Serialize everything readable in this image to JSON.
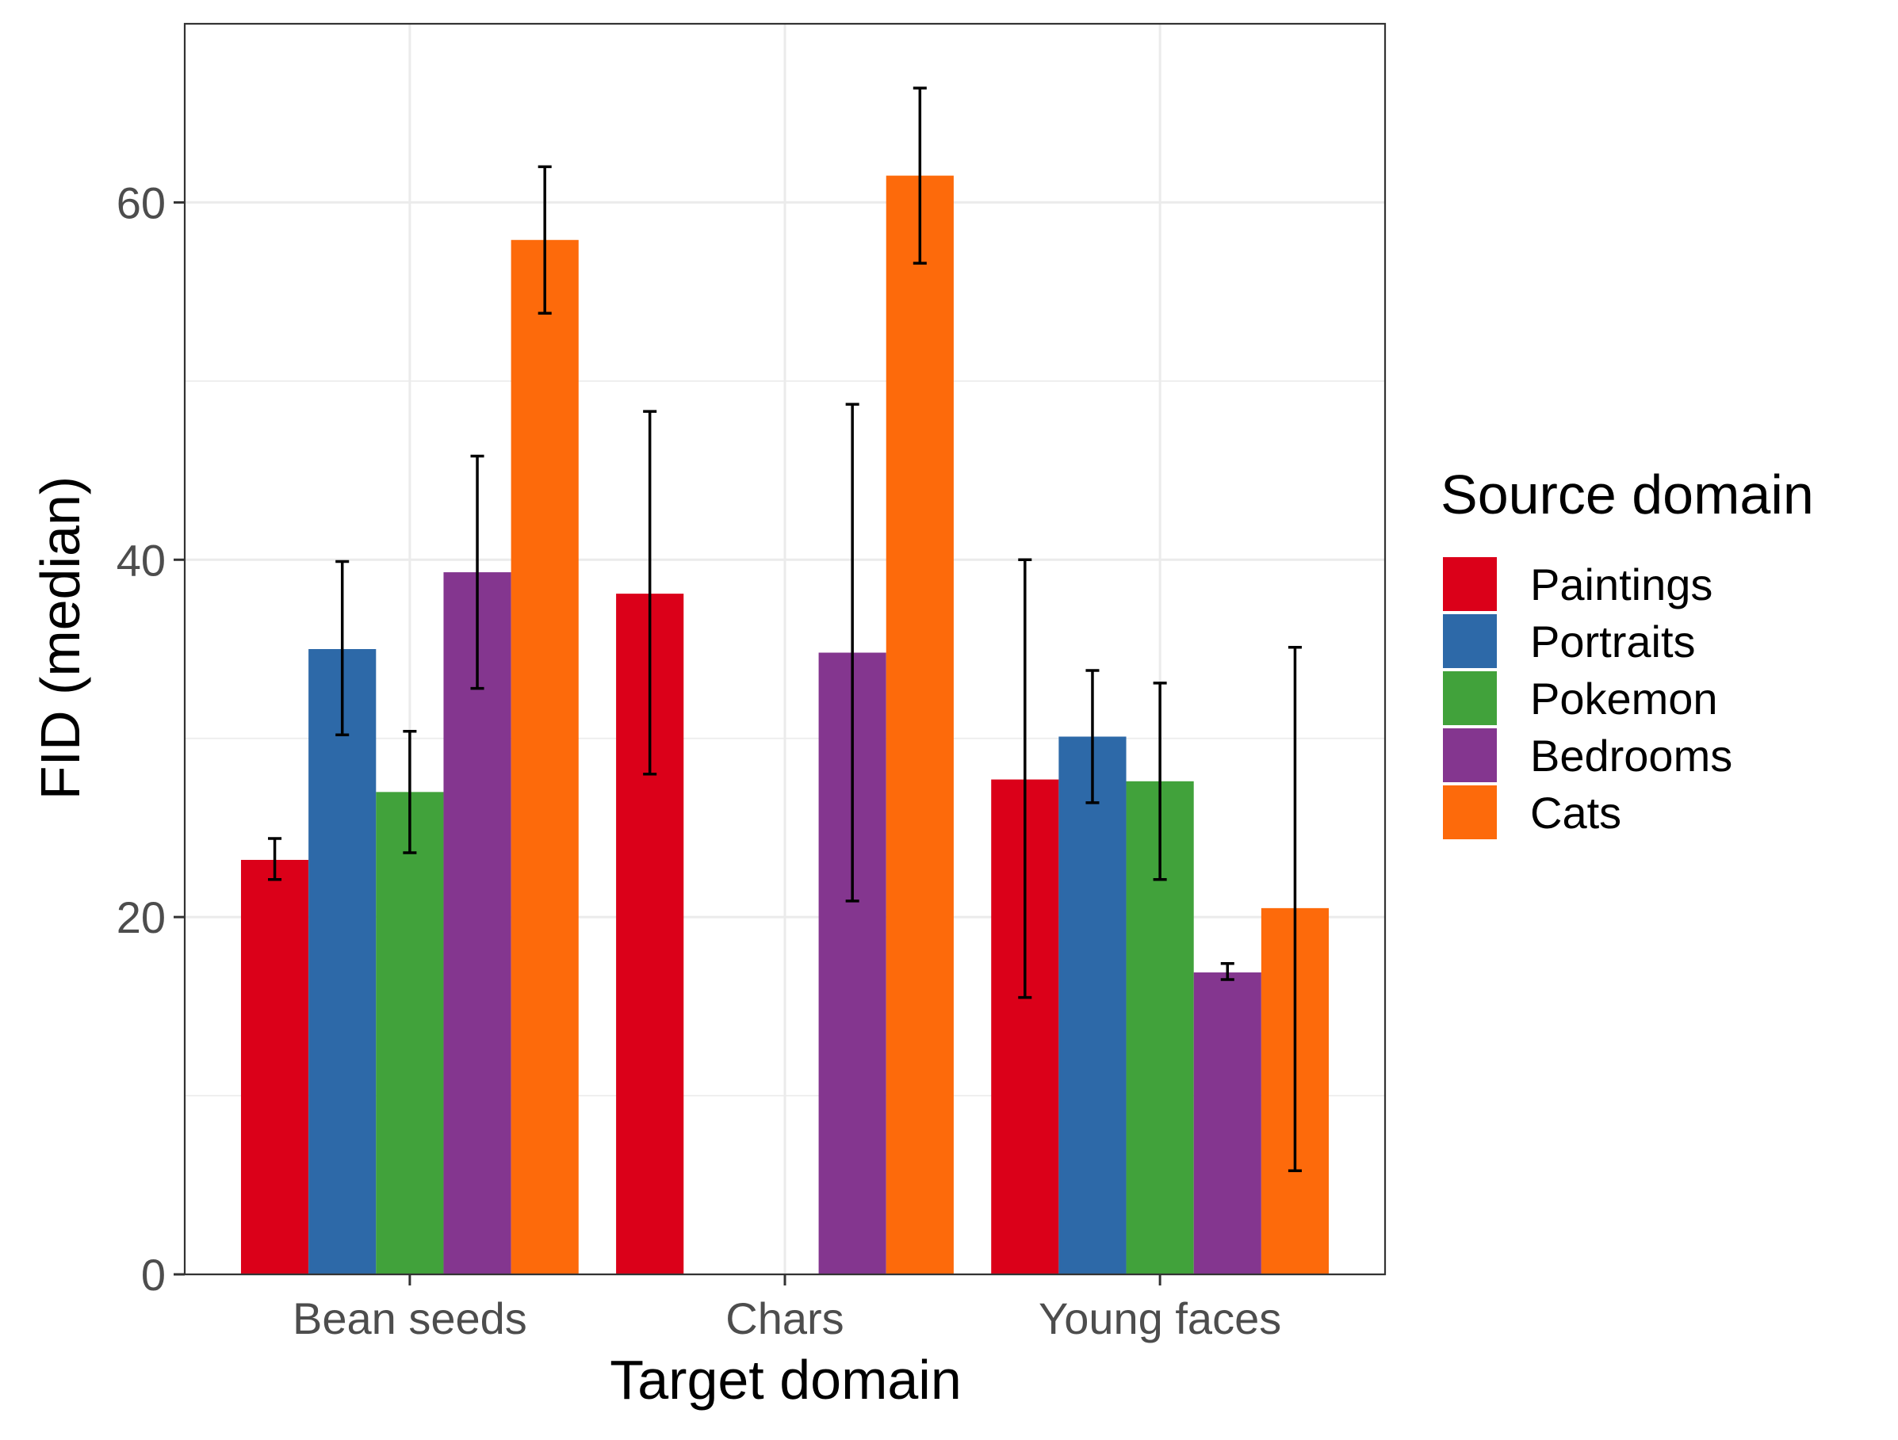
{
  "chart_data": {
    "type": "bar",
    "title": "",
    "xlabel": "Target domain",
    "ylabel": "FID (median)",
    "ylim": [
      0,
      70
    ],
    "yticks": [
      0,
      20,
      40,
      60
    ],
    "grid": true,
    "categories": [
      "Bean seeds",
      "Chars",
      "Young faces"
    ],
    "legend": {
      "title": "Source domain",
      "placement": "right"
    },
    "series": [
      {
        "name": "Paintings",
        "color": "#db0019",
        "values": [
          23.2,
          38.1,
          27.7
        ],
        "error_low": [
          22.1,
          28.0,
          15.5
        ],
        "error_high": [
          24.4,
          48.3,
          40.0
        ]
      },
      {
        "name": "Portraits",
        "color": "#2d69a8",
        "values": [
          35.0,
          0,
          30.1
        ],
        "error_low": [
          30.2,
          null,
          26.4
        ],
        "error_high": [
          39.9,
          null,
          33.8
        ]
      },
      {
        "name": "Pokemon",
        "color": "#41a23b",
        "values": [
          27.0,
          0,
          27.6
        ],
        "error_low": [
          23.6,
          null,
          22.1
        ],
        "error_high": [
          30.4,
          null,
          33.1
        ]
      },
      {
        "name": "Bedrooms",
        "color": "#84368f",
        "values": [
          39.3,
          34.8,
          16.9
        ],
        "error_low": [
          32.8,
          20.9,
          16.5
        ],
        "error_high": [
          45.8,
          48.7,
          17.4
        ]
      },
      {
        "name": "Cats",
        "color": "#fd6a0b",
        "values": [
          57.9,
          61.5,
          20.5
        ],
        "error_low": [
          53.8,
          56.6,
          5.8
        ],
        "error_high": [
          62.0,
          66.4,
          35.1
        ]
      }
    ]
  }
}
